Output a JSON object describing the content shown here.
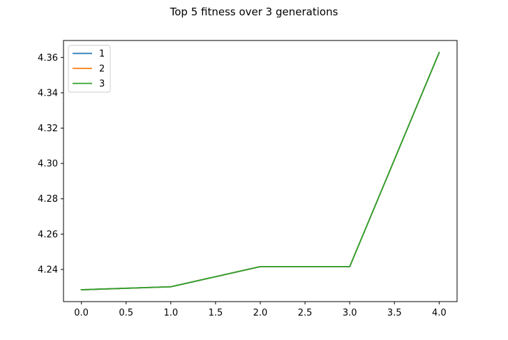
{
  "chart_data": {
    "type": "line",
    "title": "Top 5 fitness over 3 generations",
    "xlabel": "",
    "ylabel": "",
    "x": [
      0,
      1,
      2,
      3,
      4
    ],
    "xlim": [
      -0.2,
      4.2
    ],
    "ylim": [
      4.2218,
      4.3696
    ],
    "x_ticks": [
      0.0,
      0.5,
      1.0,
      1.5,
      2.0,
      2.5,
      3.0,
      3.5,
      4.0
    ],
    "x_tick_labels": [
      "0.0",
      "0.5",
      "1.0",
      "1.5",
      "2.0",
      "2.5",
      "3.0",
      "3.5",
      "4.0"
    ],
    "y_ticks": [
      4.24,
      4.26,
      4.28,
      4.3,
      4.32,
      4.34,
      4.36
    ],
    "y_tick_labels": [
      "4.24",
      "4.26",
      "4.28",
      "4.30",
      "4.32",
      "4.34",
      "4.36"
    ],
    "grid": false,
    "legend_position": "top-left",
    "series": [
      {
        "name": "1",
        "color": "#1f77b4",
        "values": [
          4.2285,
          4.2302,
          4.2416,
          4.2416,
          4.3628
        ]
      },
      {
        "name": "2",
        "color": "#ff7f0e",
        "values": [
          4.2285,
          4.2302,
          4.2416,
          4.2416,
          4.3628
        ]
      },
      {
        "name": "3",
        "color": "#2ca02c",
        "values": [
          4.2285,
          4.2302,
          4.2416,
          4.2416,
          4.3628
        ]
      }
    ]
  }
}
